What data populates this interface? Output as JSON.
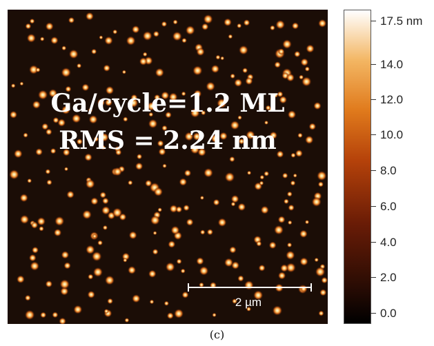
{
  "afm_image": {
    "overlay_line1": "Ga/cycle=1.2 ML",
    "overlay_line2": "RMS = 2.24 nm",
    "scale_bar_label": "2 µm"
  },
  "colorbar": {
    "ticks": [
      "17.5 nm",
      "14.0",
      "12.0",
      "10.0",
      "8.0",
      "6.0",
      "4.0",
      "2.0",
      "0.0"
    ]
  },
  "caption": "(c)",
  "colors": {
    "background": "#1b0d06",
    "colormap": [
      "#000000",
      "#2a0c04",
      "#6a1c06",
      "#b5420a",
      "#e07a1c",
      "#f3b663",
      "#ffffff"
    ]
  }
}
